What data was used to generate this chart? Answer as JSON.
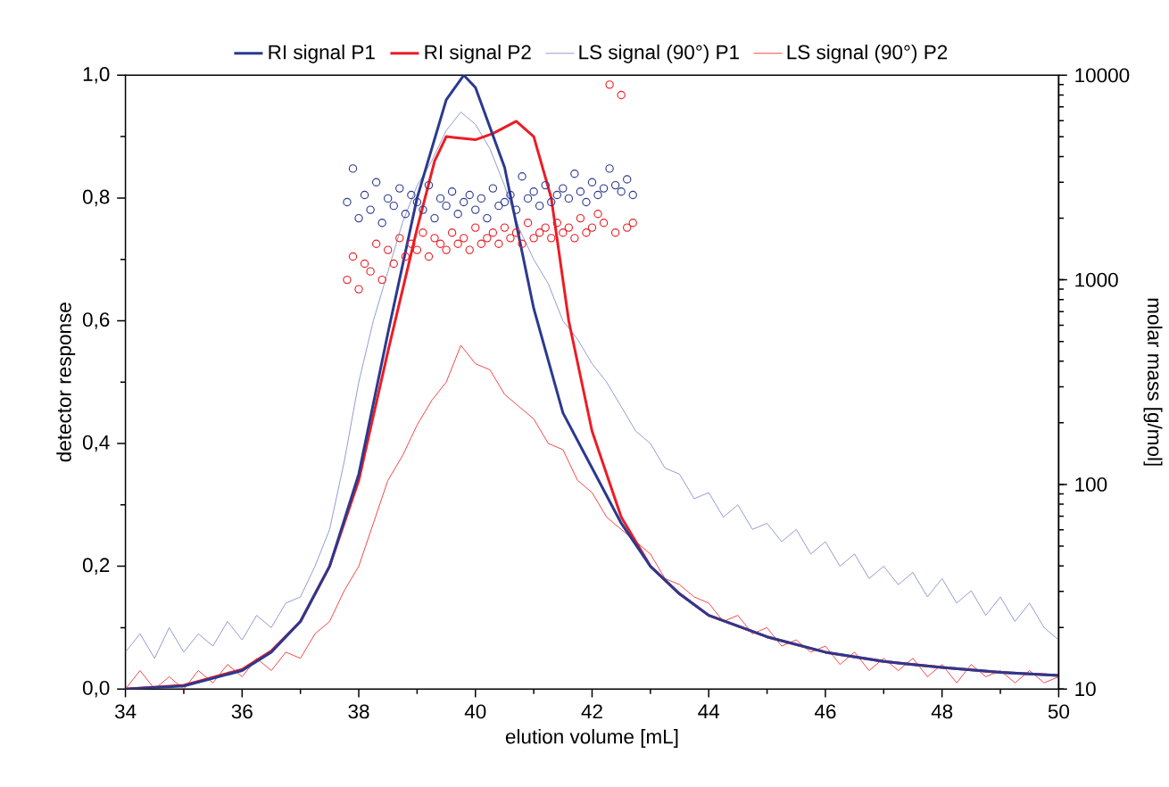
{
  "chart_data": {
    "type": "line",
    "xlabel": "elution volume [mL]",
    "ylabel": "detector response",
    "y2label": "molar mass [g/mol]",
    "xlim": [
      34,
      50
    ],
    "xticks": [
      34,
      36,
      38,
      40,
      42,
      44,
      46,
      48,
      50
    ],
    "ylim": [
      0,
      1.0
    ],
    "yticks": [
      {
        "value": 0,
        "label": "0,0"
      },
      {
        "value": 0.2,
        "label": "0,2"
      },
      {
        "value": 0.4,
        "label": "0,4"
      },
      {
        "value": 0.6,
        "label": "0,6"
      },
      {
        "value": 0.8,
        "label": "0,8"
      },
      {
        "value": 1.0,
        "label": "1,0"
      }
    ],
    "y2lim": [
      10,
      10000
    ],
    "y2ticks": [
      10,
      100,
      1000,
      10000
    ],
    "log": "y2",
    "grid": false,
    "legend": "top",
    "series": [
      {
        "name": "RI signal P1",
        "color": "#2b3990",
        "x": [
          34,
          35,
          36,
          36.5,
          37,
          37.5,
          38,
          38.5,
          39,
          39.5,
          39.8,
          40,
          40.5,
          41,
          41.5,
          42,
          42.5,
          43,
          43.5,
          44,
          45,
          46,
          47,
          48,
          49,
          50
        ],
        "values": [
          0.0,
          0.005,
          0.03,
          0.06,
          0.11,
          0.2,
          0.35,
          0.58,
          0.8,
          0.96,
          1.0,
          0.98,
          0.85,
          0.62,
          0.45,
          0.36,
          0.27,
          0.2,
          0.155,
          0.12,
          0.085,
          0.06,
          0.045,
          0.035,
          0.027,
          0.022
        ]
      },
      {
        "name": "RI signal P2",
        "color": "#ed1c24",
        "x": [
          34,
          35,
          36,
          36.5,
          37,
          37.5,
          38,
          38.5,
          39,
          39.3,
          39.5,
          40,
          40.3,
          40.7,
          41,
          41.3,
          41.6,
          42,
          42.5,
          43,
          43.5,
          44,
          45,
          46,
          47,
          48,
          49,
          50
        ],
        "values": [
          0.0,
          0.006,
          0.032,
          0.062,
          0.11,
          0.2,
          0.34,
          0.55,
          0.75,
          0.86,
          0.9,
          0.895,
          0.905,
          0.925,
          0.9,
          0.8,
          0.6,
          0.42,
          0.28,
          0.2,
          0.155,
          0.12,
          0.085,
          0.06,
          0.045,
          0.035,
          0.027,
          0.022
        ]
      },
      {
        "name": "LS signal (90°) P1",
        "color": "#8d95cc",
        "x": [
          34,
          34.25,
          34.5,
          34.75,
          35,
          35.25,
          35.5,
          35.75,
          36,
          36.25,
          36.5,
          36.75,
          37,
          37.25,
          37.5,
          37.75,
          38,
          38.25,
          38.5,
          38.75,
          39,
          39.25,
          39.5,
          39.75,
          40,
          40.25,
          40.5,
          40.75,
          41,
          41.25,
          41.5,
          41.75,
          42,
          42.25,
          42.5,
          42.75,
          43,
          43.25,
          43.5,
          43.75,
          44,
          44.25,
          44.5,
          44.75,
          45,
          45.25,
          45.5,
          45.75,
          46,
          46.25,
          46.5,
          46.75,
          47,
          47.25,
          47.5,
          47.75,
          48,
          48.25,
          48.5,
          48.75,
          49,
          49.25,
          49.5,
          49.75,
          50
        ],
        "values": [
          0.06,
          0.09,
          0.05,
          0.1,
          0.06,
          0.09,
          0.07,
          0.11,
          0.08,
          0.12,
          0.1,
          0.14,
          0.15,
          0.2,
          0.26,
          0.37,
          0.5,
          0.6,
          0.68,
          0.76,
          0.82,
          0.86,
          0.91,
          0.94,
          0.92,
          0.88,
          0.82,
          0.75,
          0.7,
          0.66,
          0.6,
          0.57,
          0.53,
          0.5,
          0.46,
          0.42,
          0.4,
          0.36,
          0.35,
          0.31,
          0.32,
          0.28,
          0.3,
          0.26,
          0.27,
          0.24,
          0.26,
          0.22,
          0.24,
          0.2,
          0.22,
          0.18,
          0.2,
          0.17,
          0.19,
          0.15,
          0.18,
          0.14,
          0.16,
          0.12,
          0.15,
          0.11,
          0.14,
          0.1,
          0.08
        ]
      },
      {
        "name": "LS signal (90°) P2",
        "color": "#f03c3c",
        "x": [
          34,
          34.25,
          34.5,
          34.75,
          35,
          35.25,
          35.5,
          35.75,
          36,
          36.25,
          36.5,
          36.75,
          37,
          37.25,
          37.5,
          37.75,
          38,
          38.25,
          38.5,
          38.75,
          39,
          39.25,
          39.5,
          39.75,
          40,
          40.25,
          40.5,
          40.75,
          41,
          41.25,
          41.5,
          41.75,
          42,
          42.25,
          42.5,
          42.75,
          43,
          43.25,
          43.5,
          43.75,
          44,
          44.25,
          44.5,
          44.75,
          45,
          45.25,
          45.5,
          45.75,
          46,
          46.25,
          46.5,
          46.75,
          47,
          47.25,
          47.5,
          47.75,
          48,
          48.25,
          48.5,
          48.75,
          49,
          49.25,
          49.5,
          49.75,
          50
        ],
        "values": [
          0.0,
          0.03,
          0.0,
          0.02,
          0.0,
          0.03,
          0.01,
          0.04,
          0.02,
          0.05,
          0.03,
          0.06,
          0.05,
          0.09,
          0.11,
          0.16,
          0.2,
          0.27,
          0.34,
          0.38,
          0.43,
          0.47,
          0.5,
          0.56,
          0.53,
          0.52,
          0.48,
          0.46,
          0.44,
          0.4,
          0.39,
          0.34,
          0.32,
          0.28,
          0.26,
          0.24,
          0.22,
          0.18,
          0.17,
          0.15,
          0.14,
          0.11,
          0.12,
          0.09,
          0.1,
          0.07,
          0.08,
          0.06,
          0.07,
          0.04,
          0.06,
          0.03,
          0.05,
          0.03,
          0.05,
          0.02,
          0.04,
          0.01,
          0.04,
          0.02,
          0.03,
          0.01,
          0.03,
          0.01,
          0.02
        ]
      },
      {
        "type": "scatter",
        "axis": "y2",
        "marker": "circle",
        "color": "#ed1c24",
        "x": [
          37.8,
          37.9,
          38.0,
          38.1,
          38.2,
          38.3,
          38.4,
          38.5,
          38.6,
          38.7,
          38.8,
          38.9,
          39.0,
          39.1,
          39.2,
          39.3,
          39.4,
          39.5,
          39.6,
          39.7,
          39.8,
          39.9,
          40.0,
          40.1,
          40.2,
          40.3,
          40.4,
          40.5,
          40.6,
          40.7,
          40.8,
          40.9,
          41.0,
          41.1,
          41.2,
          41.3,
          41.4,
          41.5,
          41.6,
          41.7,
          41.8,
          41.9,
          42.0,
          42.1,
          42.2,
          42.3,
          42.4,
          42.5,
          42.6,
          42.7
        ],
        "values": [
          1000,
          1300,
          900,
          1200,
          1100,
          1500,
          1000,
          1400,
          1200,
          1600,
          1300,
          1500,
          1400,
          1700,
          1300,
          1600,
          1500,
          1400,
          1700,
          1500,
          1600,
          1400,
          1800,
          1500,
          1600,
          1700,
          1500,
          1800,
          1600,
          1700,
          1500,
          1900,
          1600,
          1700,
          1800,
          1600,
          1900,
          1700,
          1800,
          1600,
          2000,
          1700,
          1800,
          2100,
          1900,
          9000,
          1700,
          8000,
          1800,
          1900
        ]
      },
      {
        "type": "scatter",
        "axis": "y2",
        "marker": "circle",
        "color": "#2b3990",
        "x": [
          37.8,
          37.9,
          38.0,
          38.1,
          38.2,
          38.3,
          38.4,
          38.5,
          38.6,
          38.7,
          38.8,
          38.9,
          39.0,
          39.1,
          39.2,
          39.3,
          39.4,
          39.5,
          39.6,
          39.7,
          39.8,
          39.9,
          40.0,
          40.1,
          40.2,
          40.3,
          40.4,
          40.5,
          40.6,
          40.7,
          40.8,
          40.9,
          41.0,
          41.1,
          41.2,
          41.3,
          41.4,
          41.5,
          41.6,
          41.7,
          41.8,
          41.9,
          42.0,
          42.1,
          42.2,
          42.3,
          42.4,
          42.5,
          42.6,
          42.7
        ],
        "values": [
          2400,
          3500,
          2000,
          2600,
          2200,
          3000,
          1900,
          2500,
          2300,
          2800,
          2100,
          2600,
          2400,
          2200,
          2900,
          2000,
          2500,
          2300,
          2700,
          2100,
          2400,
          2600,
          2200,
          2500,
          2000,
          2800,
          2300,
          2400,
          2600,
          2200,
          3200,
          2500,
          2700,
          2300,
          2900,
          2400,
          2600,
          2800,
          2500,
          3300,
          2700,
          2400,
          3000,
          2600,
          2800,
          3500,
          2900,
          2700,
          3100,
          2600
        ]
      }
    ]
  }
}
